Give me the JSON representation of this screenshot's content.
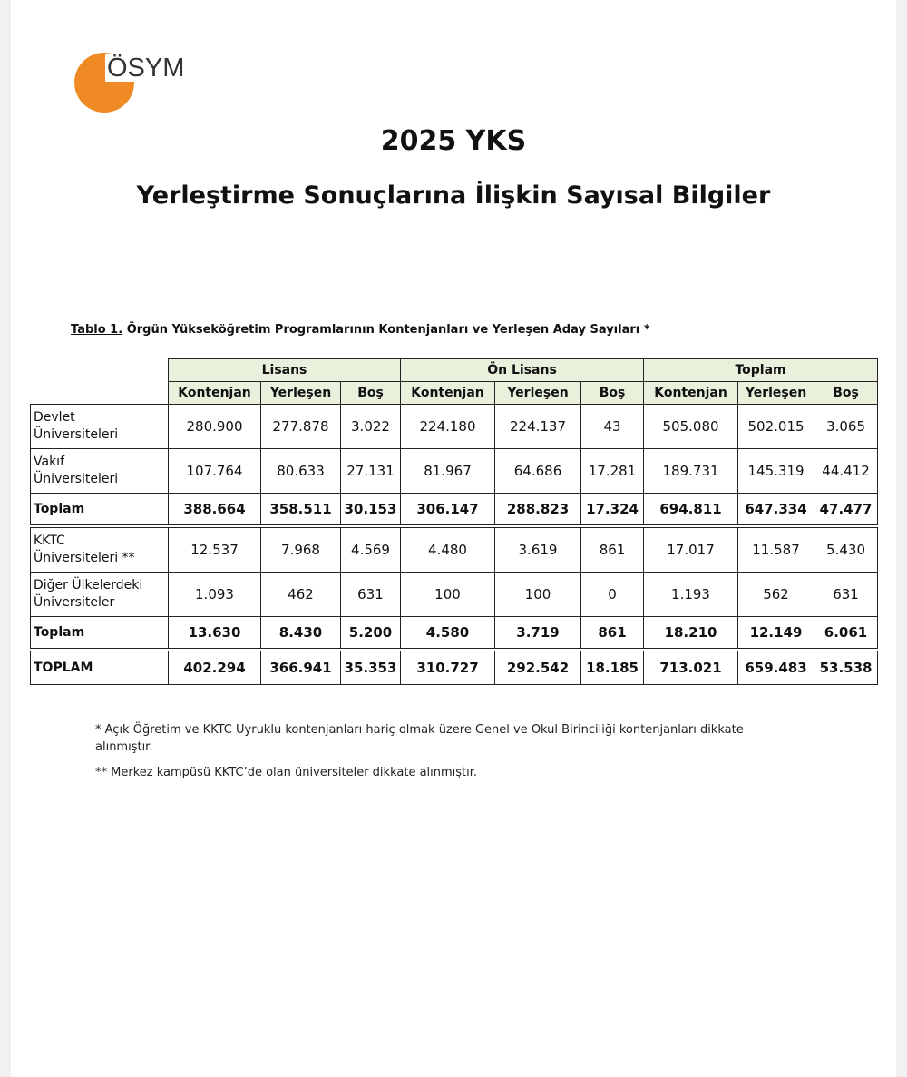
{
  "header": {
    "logo": "ÖSYM",
    "title": "2025 YKS",
    "subtitle": "Yerleştirme Sonuçlarına İlişkin Sayısal Bilgiler"
  },
  "table": {
    "caption": {
      "prefix": "Tablo 1.",
      "text": " Örgün Yükseköğretim Programlarının Kontenjanları ve Yerleşen Aday Sayıları *"
    },
    "groups": [
      "Lisans",
      "Ön Lisans",
      "Toplam"
    ],
    "columns": [
      "Kontenjan",
      "Yerleşen",
      "Boş",
      "Kontenjan",
      "Yerleşen",
      "Boş",
      "Kontenjan",
      "Yerleşen",
      "Boş"
    ],
    "sections": [
      {
        "rows": [
          {
            "label": [
              "Devlet",
              "Üniversiteleri"
            ],
            "values": [
              "280.900",
              "277.878",
              "3.022",
              "224.180",
              "224.137",
              "43",
              "505.080",
              "502.015",
              "3.065"
            ]
          },
          {
            "label": [
              "Vakıf",
              "Üniversiteleri"
            ],
            "values": [
              "107.764",
              "80.633",
              "27.131",
              "81.967",
              "64.686",
              "17.281",
              "189.731",
              "145.319",
              "44.412"
            ]
          }
        ],
        "total": {
          "label": "Toplam",
          "values": [
            "388.664",
            "358.511",
            "30.153",
            "306.147",
            "288.823",
            "17.324",
            "694.811",
            "647.334",
            "47.477"
          ]
        }
      },
      {
        "rows": [
          {
            "label": [
              "KKTC",
              "Üniversiteleri **"
            ],
            "values": [
              "12.537",
              "7.968",
              "4.569",
              "4.480",
              "3.619",
              "861",
              "17.017",
              "11.587",
              "5.430"
            ]
          },
          {
            "label": [
              "Diğer Ülkelerdeki",
              "Üniversiteler"
            ],
            "values": [
              "1.093",
              "462",
              "631",
              "100",
              "100",
              "0",
              "1.193",
              "562",
              "631"
            ]
          }
        ],
        "total": {
          "label": "Toplam",
          "values": [
            "13.630",
            "8.430",
            "5.200",
            "4.580",
            "3.719",
            "861",
            "18.210",
            "12.149",
            "6.061"
          ]
        }
      }
    ],
    "grand_total": {
      "label": "TOPLAM",
      "values": [
        "402.294",
        "366.941",
        "35.353",
        "310.727",
        "292.542",
        "18.185",
        "713.021",
        "659.483",
        "53.538"
      ]
    }
  },
  "notes": [
    "* Açık Öğretim ve KKTC Uyruklu kontenjanları hariç olmak üzere Genel ve Okul Birinciliği kontenjanları dikkate alınmıştır.",
    "** Merkez kampüsü KKTC’de olan üniversiteler dikkate alınmıştır."
  ]
}
